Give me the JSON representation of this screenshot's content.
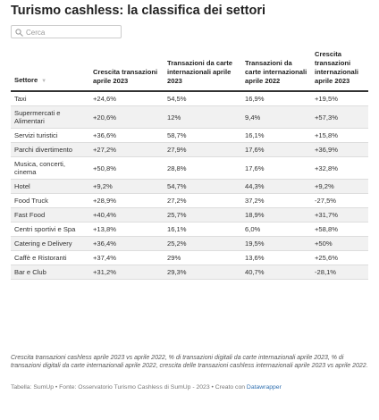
{
  "title": "Turismo cashless: la classifica dei settori",
  "search_placeholder": "Cerca",
  "table": {
    "columns": [
      "Settore",
      "Crescita transazioni aprile 2023",
      "Transazioni da carte internazionali aprile 2023",
      "Transazioni da carte internazionali aprile 2022",
      "Crescita transazioni internazionali aprile 2023"
    ],
    "rows": [
      [
        "Taxi",
        "+24,6%",
        "54,5%",
        "16,9%",
        "+19,5%"
      ],
      [
        "Supermercati e Alimentari",
        "+20,6%",
        "12%",
        "9,4%",
        "+57,3%"
      ],
      [
        "Servizi turistici",
        "+36,6%",
        "58,7%",
        "16,1%",
        "+15,8%"
      ],
      [
        "Parchi divertimento",
        "+27,2%",
        "27,9%",
        "17,6%",
        "+36,9%"
      ],
      [
        "Musica, concerti, cinema",
        "+50,8%",
        "28,8%",
        "17,6%",
        "+32,8%"
      ],
      [
        "Hotel",
        "+9,2%",
        "54,7%",
        "44,3%",
        "+9,2%"
      ],
      [
        "Food Truck",
        "+28,9%",
        "27,2%",
        "37,2%",
        "-27,5%"
      ],
      [
        "Fast Food",
        "+40,4%",
        "25,7%",
        "18,9%",
        "+31,7%"
      ],
      [
        "Centri sportivi e Spa",
        "+13,8%",
        "16,1%",
        "6,0%",
        "+58,8%"
      ],
      [
        "Catering e Delivery",
        "+36,4%",
        "25,2%",
        "19,5%",
        "+50%"
      ],
      [
        "Caffè e Ristoranti",
        "+37,4%",
        "29%",
        "13,6%",
        "+25,6%"
      ],
      [
        "Bar e Club",
        "+31,2%",
        "29,3%",
        "40,7%",
        "-28,1%"
      ]
    ]
  },
  "notes": "Crescita transazioni cashless aprile 2023 vs aprile 2022, % di transazioni digitali da carte internazionali aprile 2023, % di transazioni digitali da carte internazionali aprile 2022, crescita delle transazioni cashless internazionali aprile 2023 vs aprile 2022.",
  "source": "Tabella: SumUp • Fonte: Osservatorio Turismo Cashless di SumUp - 2023 • Creato con",
  "source_link": "Datawrapper"
}
